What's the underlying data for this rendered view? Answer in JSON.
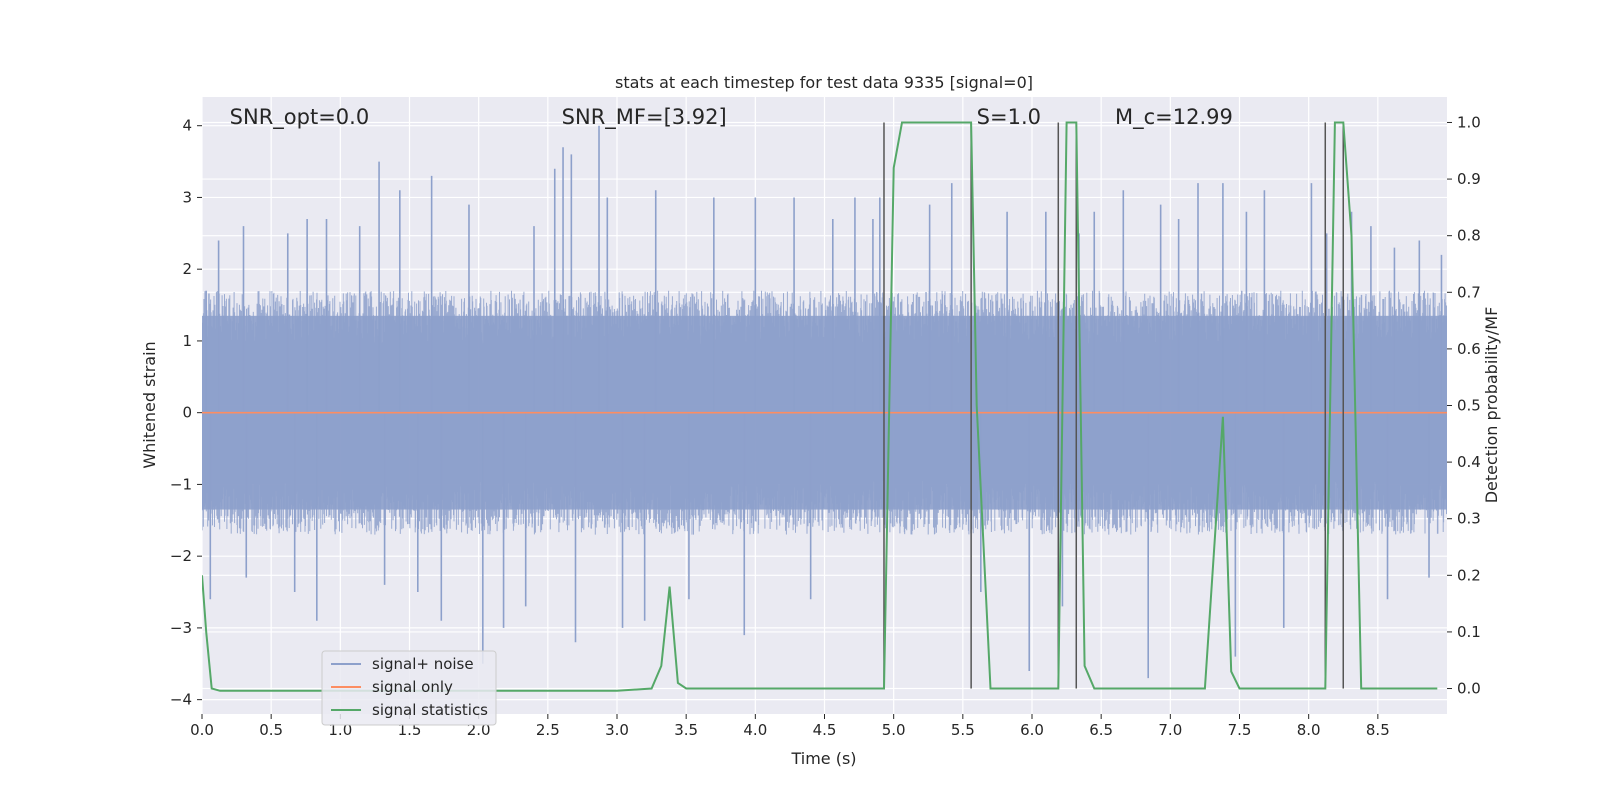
{
  "chart_data": {
    "type": "line",
    "title": "stats at each timestep for test data 9335 [signal=0]",
    "xlabel": "Time (s)",
    "ylabel_left": "Whitened strain",
    "ylabel_right": "Detection probability/MF",
    "xlim": [
      0.0,
      9.0
    ],
    "ylim_left": [
      -4.2,
      4.4
    ],
    "ylim_right": [
      -0.045,
      1.045
    ],
    "x_ticks": [
      0.0,
      0.5,
      1.0,
      1.5,
      2.0,
      2.5,
      3.0,
      3.5,
      4.0,
      4.5,
      5.0,
      5.5,
      6.0,
      6.5,
      7.0,
      7.5,
      8.0,
      8.5
    ],
    "x_tick_labels": [
      "0.0",
      "0.5",
      "1.0",
      "1.5",
      "2.0",
      "2.5",
      "3.0",
      "3.5",
      "4.0",
      "4.5",
      "5.0",
      "5.5",
      "6.0",
      "6.5",
      "7.0",
      "7.5",
      "8.0",
      "8.5"
    ],
    "y_left_ticks": [
      -4,
      -3,
      -2,
      -1,
      0,
      1,
      2,
      3,
      4
    ],
    "y_left_tick_labels": [
      "−4",
      "−3",
      "−2",
      "−1",
      "0",
      "1",
      "2",
      "3",
      "4"
    ],
    "y_right_ticks": [
      0.0,
      0.1,
      0.2,
      0.3,
      0.4,
      0.5,
      0.6,
      0.7,
      0.8,
      0.9,
      1.0
    ],
    "y_right_tick_labels": [
      "0.0",
      "0.1",
      "0.2",
      "0.3",
      "0.4",
      "0.5",
      "0.6",
      "0.7",
      "0.8",
      "0.9",
      "1.0"
    ],
    "grid": true,
    "legend_position": "lower-left",
    "annotations": [
      {
        "text": "SNR_opt=0.0",
        "x": 0.2
      },
      {
        "text": "SNR_MF=[3.92]",
        "x": 2.6
      },
      {
        "text": "S=1.0",
        "x": 5.6
      },
      {
        "text": "M_c=12.99",
        "x": 6.6
      }
    ],
    "event_markers_x": [
      4.93,
      5.56,
      6.19,
      6.32,
      8.12,
      8.25
    ],
    "series": [
      {
        "name": "signal+ noise",
        "axis": "left",
        "color": "#8da0cb",
        "style": "noise",
        "typical_envelope": [
          -1.7,
          1.7
        ],
        "peak_samples": [
          [
            0.03,
            1.7
          ],
          [
            0.06,
            -2.6
          ],
          [
            0.12,
            2.4
          ],
          [
            0.3,
            2.6
          ],
          [
            0.32,
            -2.3
          ],
          [
            0.62,
            2.5
          ],
          [
            0.67,
            -2.5
          ],
          [
            0.76,
            2.7
          ],
          [
            0.83,
            -2.9
          ],
          [
            0.9,
            2.7
          ],
          [
            1.14,
            2.6
          ],
          [
            1.28,
            3.5
          ],
          [
            1.32,
            -2.4
          ],
          [
            1.43,
            3.1
          ],
          [
            1.56,
            -2.5
          ],
          [
            1.66,
            3.3
          ],
          [
            1.73,
            -2.9
          ],
          [
            1.93,
            2.9
          ],
          [
            2.03,
            -3.5
          ],
          [
            2.18,
            -3.0
          ],
          [
            2.34,
            -2.7
          ],
          [
            2.4,
            2.6
          ],
          [
            2.55,
            3.4
          ],
          [
            2.61,
            3.7
          ],
          [
            2.67,
            3.6
          ],
          [
            2.7,
            -3.2
          ],
          [
            2.87,
            4.0
          ],
          [
            2.93,
            3.0
          ],
          [
            3.04,
            -3.0
          ],
          [
            3.2,
            -2.9
          ],
          [
            3.28,
            3.1
          ],
          [
            3.52,
            -2.6
          ],
          [
            3.7,
            3.0
          ],
          [
            3.92,
            -3.1
          ],
          [
            4.0,
            3.0
          ],
          [
            4.28,
            3.0
          ],
          [
            4.4,
            -2.6
          ],
          [
            4.56,
            2.7
          ],
          [
            4.72,
            3.0
          ],
          [
            4.85,
            2.7
          ],
          [
            4.9,
            3.0
          ],
          [
            5.26,
            2.9
          ],
          [
            5.42,
            3.2
          ],
          [
            5.63,
            -2.5
          ],
          [
            5.82,
            2.8
          ],
          [
            5.98,
            -3.6
          ],
          [
            6.1,
            2.8
          ],
          [
            6.22,
            -2.7
          ],
          [
            6.34,
            2.5
          ],
          [
            6.45,
            2.8
          ],
          [
            6.66,
            3.1
          ],
          [
            6.84,
            -3.7
          ],
          [
            6.93,
            2.9
          ],
          [
            7.06,
            2.7
          ],
          [
            7.2,
            3.2
          ],
          [
            7.38,
            3.2
          ],
          [
            7.47,
            -3.4
          ],
          [
            7.55,
            2.8
          ],
          [
            7.68,
            3.1
          ],
          [
            7.82,
            -3.0
          ],
          [
            8.02,
            3.2
          ],
          [
            8.13,
            2.5
          ],
          [
            8.31,
            2.8
          ],
          [
            8.45,
            2.6
          ],
          [
            8.57,
            -2.6
          ],
          [
            8.62,
            2.3
          ],
          [
            8.8,
            2.4
          ],
          [
            8.87,
            -2.3
          ],
          [
            8.96,
            2.2
          ]
        ]
      },
      {
        "name": "signal only",
        "axis": "left",
        "color": "#fc8d62",
        "x": [
          0.0,
          9.0
        ],
        "y": [
          0.0,
          0.0
        ]
      },
      {
        "name": "signal statistics",
        "axis": "right",
        "color": "#55a868",
        "x": [
          0.0,
          0.03,
          0.07,
          0.13,
          0.6,
          1.0,
          2.0,
          3.0,
          3.25,
          3.32,
          3.38,
          3.44,
          3.5,
          4.0,
          4.93,
          5.0,
          5.06,
          5.13,
          5.5,
          5.56,
          5.6,
          5.7,
          6.0,
          6.19,
          6.25,
          6.32,
          6.38,
          6.45,
          7.0,
          7.25,
          7.38,
          7.44,
          7.5,
          8.06,
          8.12,
          8.19,
          8.25,
          8.31,
          8.38,
          8.5,
          8.93
        ],
        "y": [
          0.2,
          0.1,
          0.0,
          -0.004,
          -0.004,
          -0.004,
          -0.004,
          -0.004,
          0.0,
          0.04,
          0.18,
          0.01,
          0.0,
          0.0,
          0.0,
          0.92,
          1.0,
          1.0,
          1.0,
          1.0,
          0.5,
          0.0,
          0.0,
          0.0,
          1.0,
          1.0,
          0.04,
          0.0,
          0.0,
          0.0,
          0.48,
          0.03,
          0.0,
          0.0,
          0.0,
          1.0,
          1.0,
          0.8,
          0.0,
          0.0,
          0.0
        ]
      }
    ]
  }
}
